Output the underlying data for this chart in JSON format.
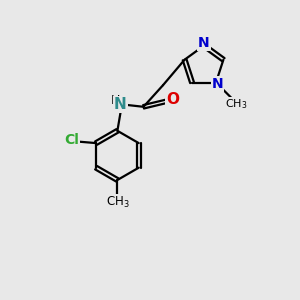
{
  "background_color": "#e8e8e8",
  "bond_color": "#000000",
  "N_blue": "#0000cc",
  "N_teal": "#2e8b8b",
  "O_color": "#dd0000",
  "Cl_color": "#33aa33",
  "lw": 1.6,
  "figsize": [
    3.0,
    3.0
  ],
  "dpi": 100,
  "xlim": [
    0,
    10
  ],
  "ylim": [
    0,
    10
  ]
}
